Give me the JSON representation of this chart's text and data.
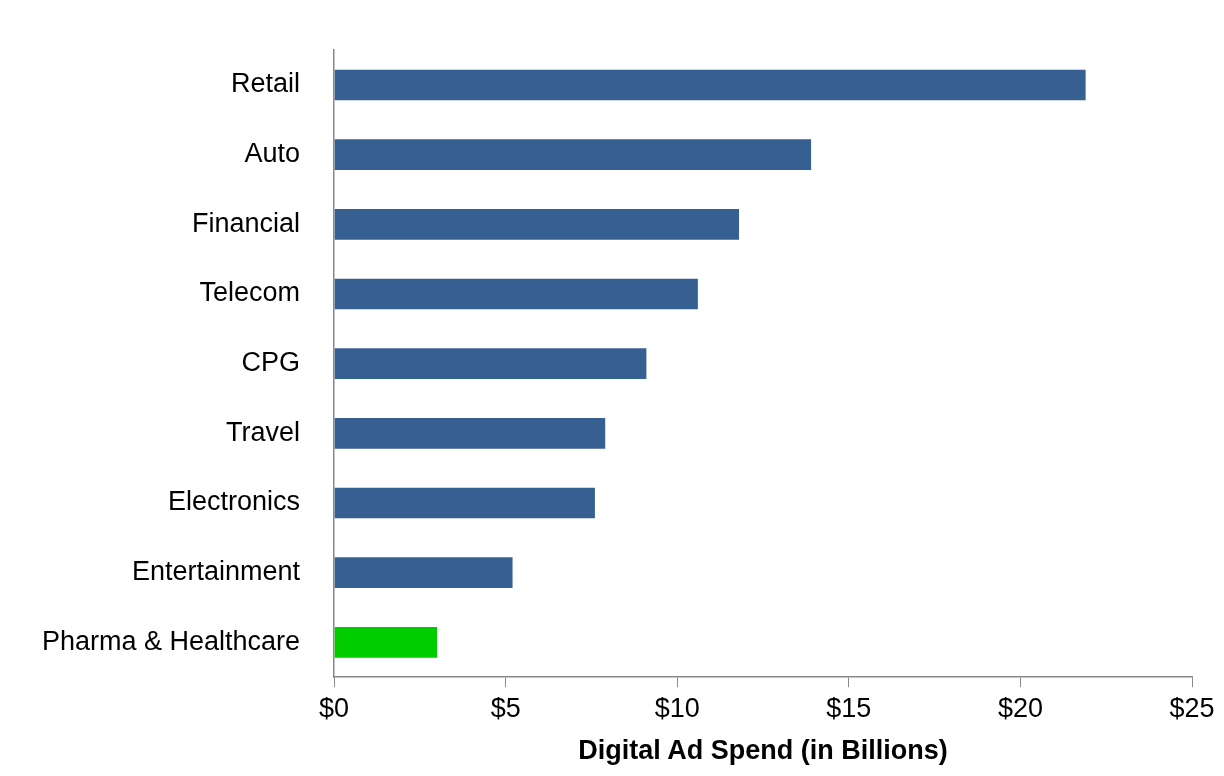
{
  "chart_data": {
    "type": "bar",
    "orientation": "horizontal",
    "xlabel": "Digital Ad Spend (in Billions)",
    "categories": [
      "Retail",
      "Auto",
      "Financial",
      "Telecom",
      "CPG",
      "Travel",
      "Electronics",
      "Entertainment",
      "Pharma & Healthcare"
    ],
    "values": [
      21.9,
      13.9,
      11.8,
      10.6,
      9.1,
      7.9,
      7.6,
      5.2,
      3.0
    ],
    "colors": [
      "#366092",
      "#366092",
      "#366092",
      "#366092",
      "#366092",
      "#366092",
      "#366092",
      "#366092",
      "#00cc00"
    ],
    "xlim": [
      0,
      25
    ],
    "xticks": [
      {
        "value": 0,
        "label": "$0"
      },
      {
        "value": 5,
        "label": "$5"
      },
      {
        "value": 10,
        "label": "$10"
      },
      {
        "value": 15,
        "label": "$15"
      },
      {
        "value": 20,
        "label": "$20"
      },
      {
        "value": 25,
        "label": "$25"
      }
    ],
    "grid": false,
    "legend": false
  }
}
